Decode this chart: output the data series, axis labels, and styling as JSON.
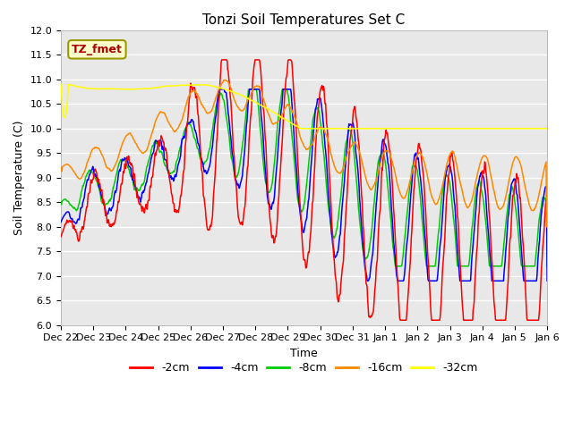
{
  "title": "Tonzi Soil Temperatures Set C",
  "xlabel": "Time",
  "ylabel": "Soil Temperature (C)",
  "ylim": [
    6.0,
    12.0
  ],
  "yticks": [
    6.0,
    6.5,
    7.0,
    7.5,
    8.0,
    8.5,
    9.0,
    9.5,
    10.0,
    10.5,
    11.0,
    11.5,
    12.0
  ],
  "bg_color": "#e8e8e8",
  "line_colors": {
    "-2cm": "#ff0000",
    "-4cm": "#0000ff",
    "-8cm": "#00cc00",
    "-16cm": "#ff8800",
    "-32cm": "#ffff00"
  },
  "tick_labels": [
    "Dec 22",
    "Dec 23",
    "Dec 24",
    "Dec 25",
    "Dec 26",
    "Dec 27",
    "Dec 28",
    "Dec 29",
    "Dec 30",
    "Dec 31",
    "Jan 1",
    "Jan 2",
    "Jan 3",
    "Jan 4",
    "Jan 5",
    "Jan 6"
  ],
  "annotation_text": "TZ_fmet",
  "annotation_color": "#aa0000",
  "annotation_bg": "#ffffcc",
  "annotation_border": "#999900"
}
